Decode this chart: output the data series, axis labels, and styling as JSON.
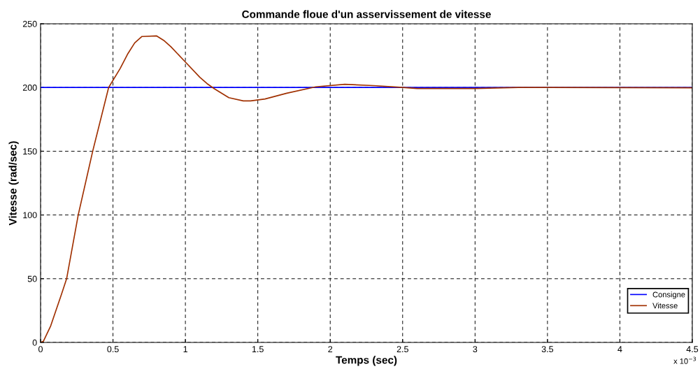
{
  "chart_data": {
    "type": "line",
    "title": "Commande floue d'un asservissement de vitesse",
    "xlabel": "Temps (sec)",
    "ylabel": "Vitesse (rad/sec)",
    "annotations": [
      "x 10$^{−3}$"
    ],
    "series": [
      {
        "name": "Consigne",
        "color": "#0000ff",
        "x": [
          0,
          4.5
        ],
        "values": [
          200,
          200
        ]
      },
      {
        "name": "Vitesse",
        "color": "#a03000",
        "x": [
          0,
          0.02,
          0.07,
          0.145,
          0.18,
          0.26,
          0.36,
          0.47,
          0.55,
          0.6,
          0.65,
          0.7,
          0.8,
          0.85,
          0.9,
          1.0,
          1.1,
          1.15,
          1.2,
          1.3,
          1.4,
          1.45,
          1.55,
          1.7,
          1.9,
          2.1,
          2.3,
          2.5,
          2.6,
          3.0,
          3.3,
          3.5,
          4.5
        ],
        "values": [
          0,
          1,
          13,
          38,
          50,
          100,
          150,
          200,
          215,
          226,
          235,
          240,
          240.5,
          237,
          232,
          220,
          208,
          203,
          199,
          192,
          189.5,
          189.5,
          191,
          195.5,
          200.5,
          202.5,
          201.5,
          200,
          199.2,
          199.2,
          200,
          200,
          199.8
        ]
      }
    ],
    "xlim": [
      0,
      4.5
    ],
    "xticks": [
      0,
      0.5,
      1,
      1.5,
      2,
      2.5,
      3,
      3.5,
      4,
      4.5
    ],
    "ylim": [
      0,
      250
    ],
    "yticks": [
      0,
      50,
      100,
      150,
      200,
      250
    ],
    "grid": true,
    "legend": "bottom right",
    "line_style": "solid",
    "marker": "none"
  }
}
